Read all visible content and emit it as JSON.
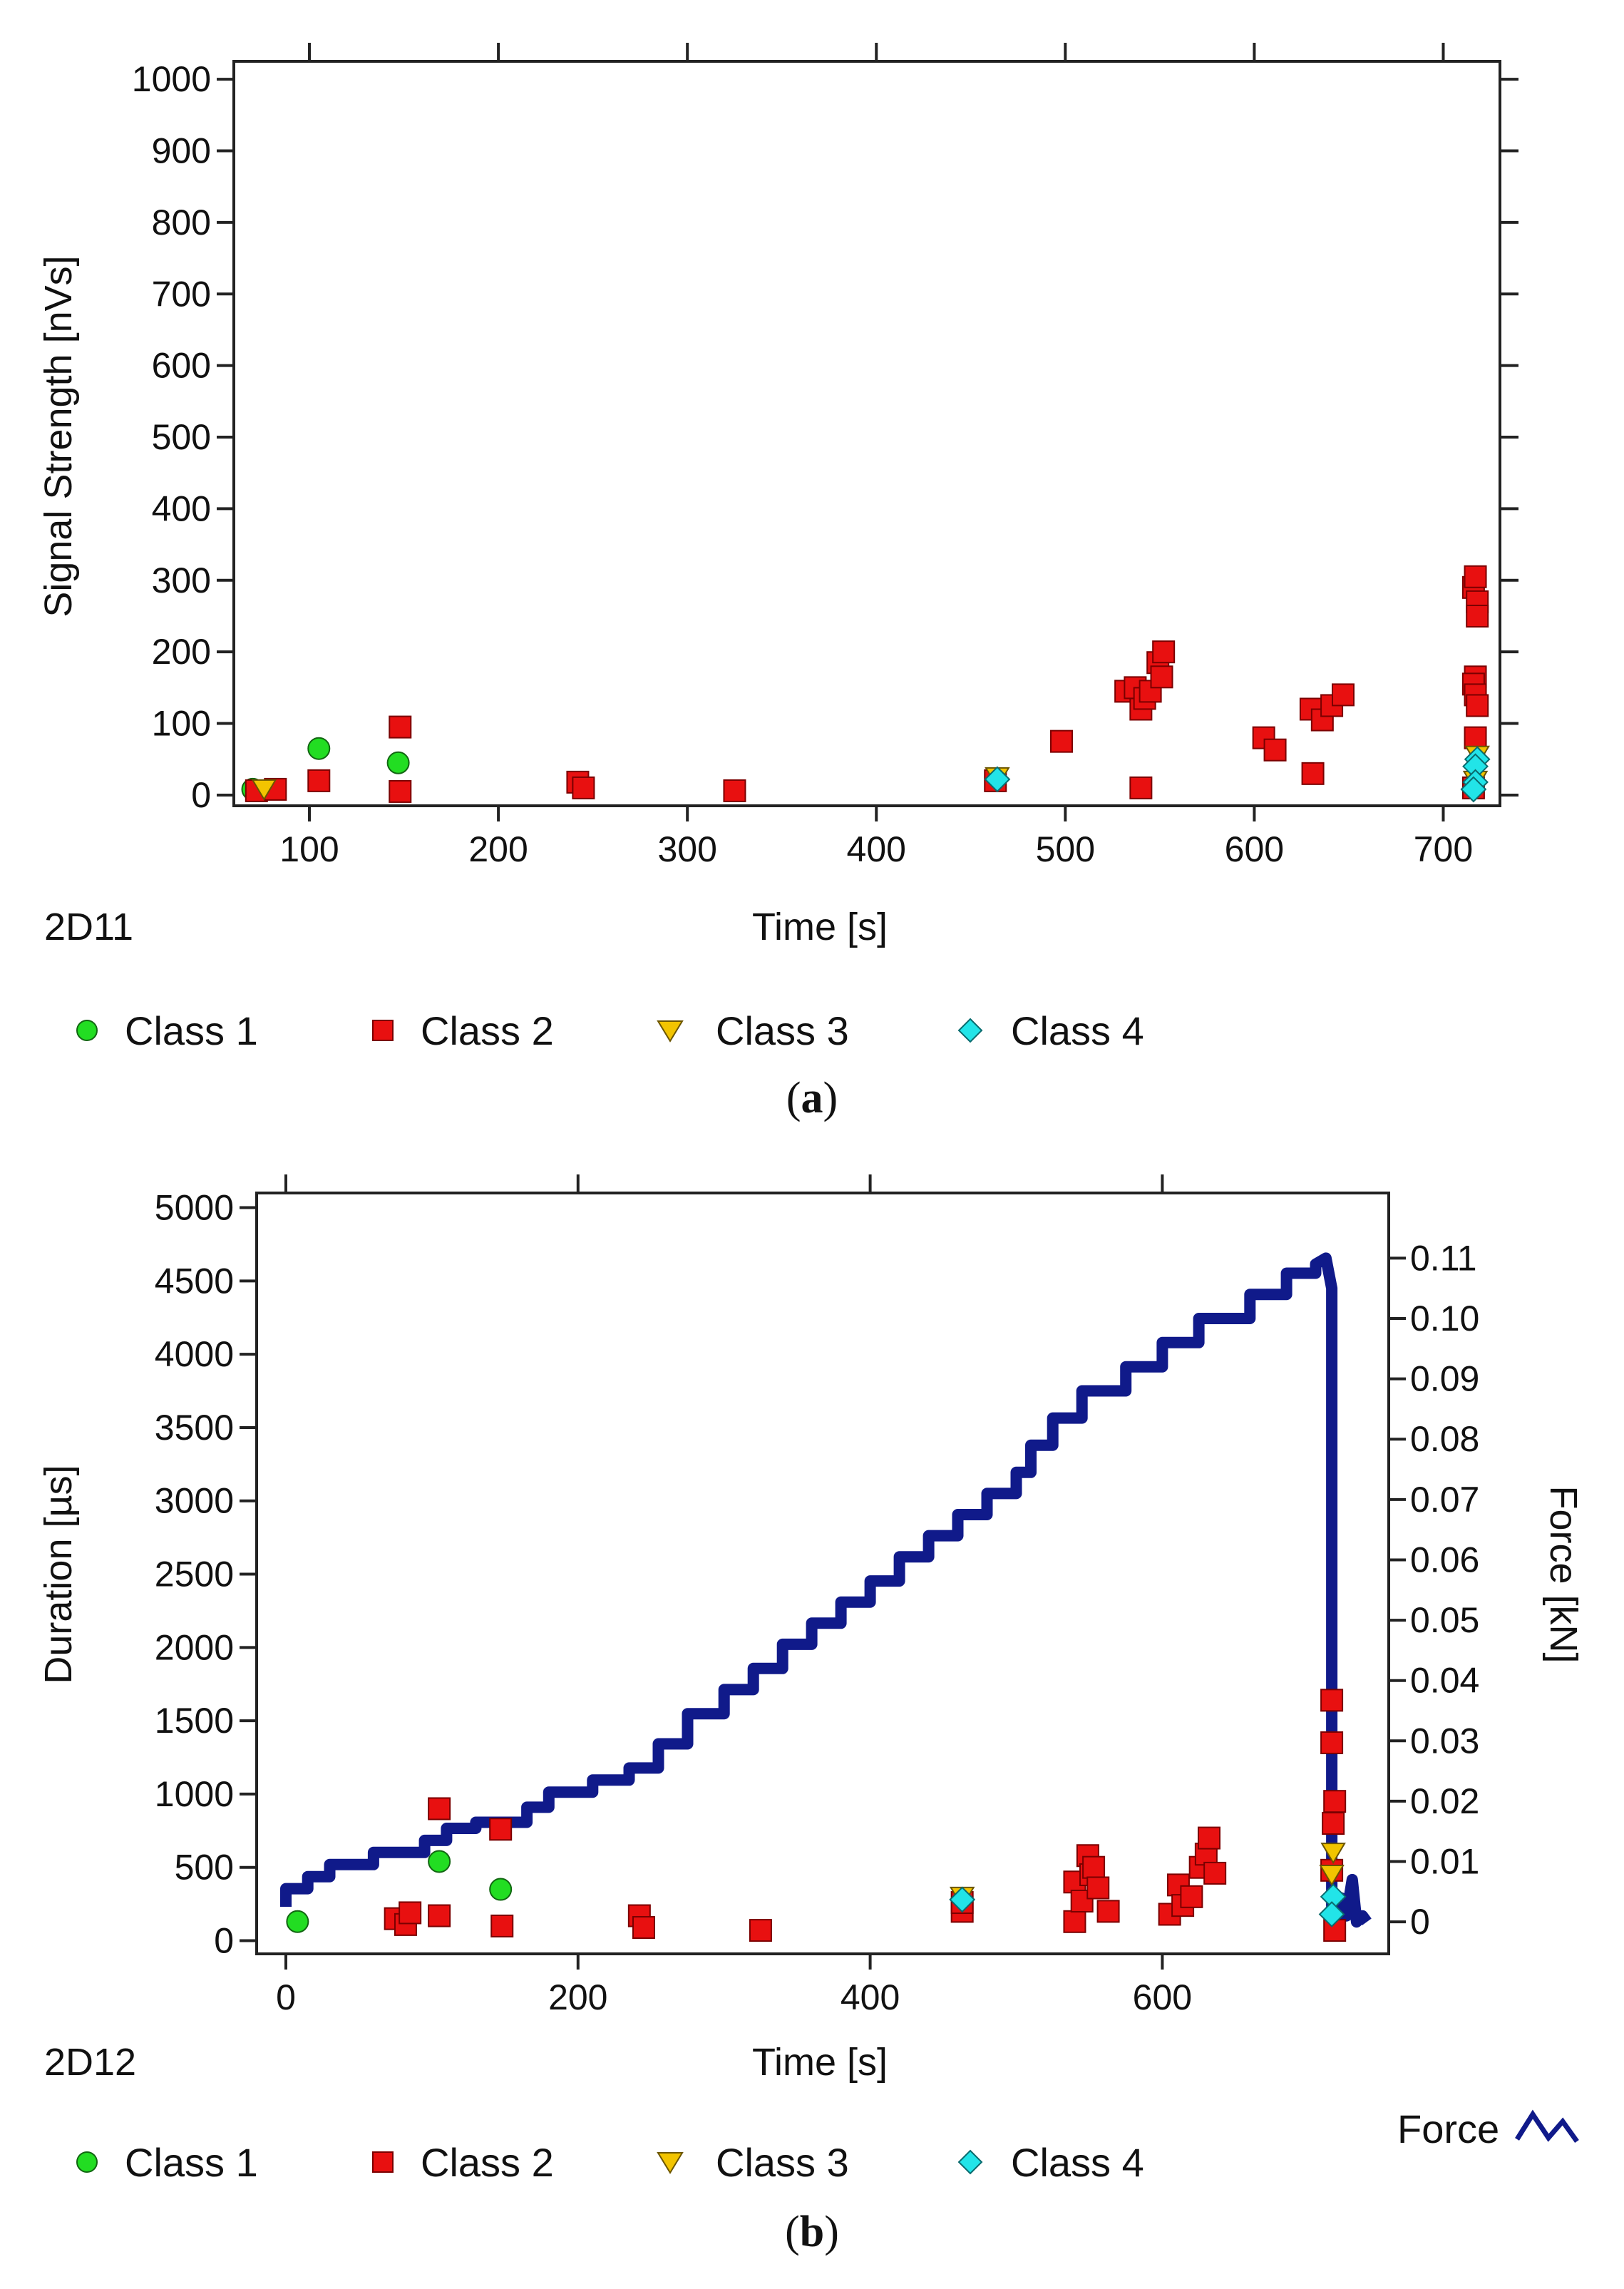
{
  "chart_data": [
    {
      "type": "scatter",
      "panel_id": "2D11",
      "caption_letter": "a",
      "xlabel": "Time [s]",
      "ylabel": "Signal Strength [nVs]",
      "xlim": [
        60,
        730
      ],
      "ylim": [
        -15,
        1025
      ],
      "xticks": [
        100,
        200,
        300,
        400,
        500,
        600,
        700
      ],
      "yticks": [
        0,
        100,
        200,
        300,
        400,
        500,
        600,
        700,
        800,
        900,
        1000
      ],
      "series": [
        {
          "name": "Class 1",
          "points": [
            [
              70,
              8
            ],
            [
              105,
              65
            ],
            [
              147,
              45
            ]
          ]
        },
        {
          "name": "Class 2",
          "points": [
            [
              72,
              6
            ],
            [
              82,
              8
            ],
            [
              105,
              20
            ],
            [
              148,
              95
            ],
            [
              148,
              5
            ],
            [
              242,
              18
            ],
            [
              245,
              10
            ],
            [
              325,
              6
            ],
            [
              463,
              20
            ],
            [
              498,
              75
            ],
            [
              532,
              145
            ],
            [
              537,
              150
            ],
            [
              540,
              120
            ],
            [
              542,
              135
            ],
            [
              545,
              145
            ],
            [
              549,
              185
            ],
            [
              551,
              165
            ],
            [
              552,
              200
            ],
            [
              540,
              10
            ],
            [
              605,
              80
            ],
            [
              611,
              63
            ],
            [
              630,
              120
            ],
            [
              631,
              30
            ],
            [
              636,
              105
            ],
            [
              641,
              125
            ],
            [
              647,
              140
            ],
            [
              716,
              290
            ],
            [
              717,
              305
            ],
            [
              718,
              270
            ],
            [
              718,
              250
            ],
            [
              717,
              165
            ],
            [
              716,
              155
            ],
            [
              717,
              140
            ],
            [
              718,
              125
            ],
            [
              717,
              80
            ],
            [
              716,
              10
            ]
          ]
        },
        {
          "name": "Class 3",
          "points": [
            [
              76,
              8
            ],
            [
              464,
              25
            ],
            [
              718,
              55
            ],
            [
              717,
              20
            ]
          ]
        },
        {
          "name": "Class 4",
          "points": [
            [
              464,
              22
            ],
            [
              718,
              50
            ],
            [
              717,
              40
            ],
            [
              717,
              18
            ],
            [
              716,
              8
            ]
          ]
        }
      ],
      "legend": [
        "Class 1",
        "Class 2",
        "Class 3",
        "Class 4"
      ]
    },
    {
      "type": "scatter+line",
      "panel_id": "2D12",
      "caption_letter": "b",
      "xlabel": "Time [s]",
      "ylabel": "Duration [µs]",
      "y2label": "Force [kN]",
      "xlim": [
        -20,
        755
      ],
      "ylim": [
        -90,
        5100
      ],
      "y2lim": [
        -0.0053,
        0.1208
      ],
      "xticks": [
        0,
        200,
        400,
        600
      ],
      "yticks": [
        0,
        500,
        1000,
        1500,
        2000,
        2500,
        3000,
        3500,
        4000,
        4500,
        5000
      ],
      "y2ticks": [
        "0",
        "0.01",
        "0.02",
        "0.03",
        "0.04",
        "0.05",
        "0.06",
        "0.07",
        "0.08",
        "0.09",
        "0.10",
        "0.11"
      ],
      "y2tick_values": [
        0,
        0.01,
        0.02,
        0.03,
        0.04,
        0.05,
        0.06,
        0.07,
        0.08,
        0.09,
        0.1,
        0.11
      ],
      "series": [
        {
          "name": "Class 1",
          "points": [
            [
              8,
              130
            ],
            [
              105,
              540
            ],
            [
              147,
              350
            ]
          ]
        },
        {
          "name": "Class 2",
          "points": [
            [
              75,
              150
            ],
            [
              82,
              110
            ],
            [
              85,
              190
            ],
            [
              105,
              900
            ],
            [
              105,
              170
            ],
            [
              147,
              760
            ],
            [
              148,
              100
            ],
            [
              242,
              170
            ],
            [
              245,
              90
            ],
            [
              325,
              70
            ],
            [
              463,
              200
            ],
            [
              463,
              260
            ],
            [
              540,
              130
            ],
            [
              540,
              400
            ],
            [
              545,
              270
            ],
            [
              549,
              580
            ],
            [
              551,
              450
            ],
            [
              553,
              500
            ],
            [
              556,
              360
            ],
            [
              563,
              200
            ],
            [
              605,
              180
            ],
            [
              611,
              380
            ],
            [
              614,
              240
            ],
            [
              620,
              300
            ],
            [
              626,
              500
            ],
            [
              630,
              590
            ],
            [
              632,
              700
            ],
            [
              636,
              460
            ],
            [
              716,
              1640
            ],
            [
              716,
              1350
            ],
            [
              718,
              950
            ],
            [
              717,
              800
            ],
            [
              716,
              480
            ],
            [
              718,
              70
            ]
          ]
        },
        {
          "name": "Class 3",
          "points": [
            [
              463,
              300
            ],
            [
              717,
              600
            ],
            [
              716,
              450
            ]
          ]
        },
        {
          "name": "Class 4",
          "points": [
            [
              463,
              280
            ],
            [
              717,
              300
            ],
            [
              716,
              180
            ]
          ]
        }
      ],
      "force": {
        "name": "Force",
        "points": [
          [
            0,
            0.0025
          ],
          [
            0,
            0.0055
          ],
          [
            15,
            0.0055
          ],
          [
            15,
            0.0075
          ],
          [
            30,
            0.0075
          ],
          [
            30,
            0.0095
          ],
          [
            60,
            0.0095
          ],
          [
            60,
            0.0115
          ],
          [
            95,
            0.0115
          ],
          [
            95,
            0.0135
          ],
          [
            110,
            0.0135
          ],
          [
            110,
            0.0155
          ],
          [
            130,
            0.0155
          ],
          [
            130,
            0.0165
          ],
          [
            165,
            0.0165
          ],
          [
            165,
            0.019
          ],
          [
            180,
            0.019
          ],
          [
            180,
            0.0215
          ],
          [
            210,
            0.0215
          ],
          [
            210,
            0.0235
          ],
          [
            235,
            0.0235
          ],
          [
            235,
            0.0255
          ],
          [
            255,
            0.0255
          ],
          [
            255,
            0.0295
          ],
          [
            275,
            0.0295
          ],
          [
            275,
            0.0345
          ],
          [
            300,
            0.0345
          ],
          [
            300,
            0.0385
          ],
          [
            320,
            0.0385
          ],
          [
            320,
            0.042
          ],
          [
            340,
            0.042
          ],
          [
            340,
            0.046
          ],
          [
            360,
            0.046
          ],
          [
            360,
            0.0495
          ],
          [
            380,
            0.0495
          ],
          [
            380,
            0.053
          ],
          [
            400,
            0.053
          ],
          [
            400,
            0.0565
          ],
          [
            420,
            0.0565
          ],
          [
            420,
            0.0605
          ],
          [
            440,
            0.0605
          ],
          [
            440,
            0.064
          ],
          [
            460,
            0.064
          ],
          [
            460,
            0.0675
          ],
          [
            480,
            0.0675
          ],
          [
            480,
            0.071
          ],
          [
            500,
            0.071
          ],
          [
            500,
            0.0745
          ],
          [
            510,
            0.0745
          ],
          [
            510,
            0.079
          ],
          [
            525,
            0.079
          ],
          [
            525,
            0.0835
          ],
          [
            545,
            0.0835
          ],
          [
            545,
            0.088
          ],
          [
            575,
            0.088
          ],
          [
            575,
            0.092
          ],
          [
            600,
            0.092
          ],
          [
            600,
            0.096
          ],
          [
            625,
            0.096
          ],
          [
            625,
            0.1
          ],
          [
            660,
            0.1
          ],
          [
            660,
            0.104
          ],
          [
            685,
            0.104
          ],
          [
            685,
            0.1075
          ],
          [
            705,
            0.1075
          ],
          [
            705,
            0.109
          ],
          [
            712,
            0.11
          ],
          [
            716,
            0.105
          ],
          [
            716,
            0.0
          ],
          [
            720,
            0.0
          ],
          [
            722,
            0.004
          ],
          [
            726,
            0.001
          ],
          [
            730,
            0.007
          ],
          [
            733,
            0.0
          ],
          [
            737,
            0.001
          ],
          [
            740,
            0.0
          ]
        ]
      },
      "legend": [
        "Class 1",
        "Class 2",
        "Class 3",
        "Class 4"
      ],
      "force_legend": "Force"
    }
  ],
  "colors": {
    "class1": "#22dd22",
    "class2": "#e81010",
    "class3": "#f2c400",
    "class4": "#22e4e8",
    "force": "#101a8a",
    "axis": "#222222"
  }
}
